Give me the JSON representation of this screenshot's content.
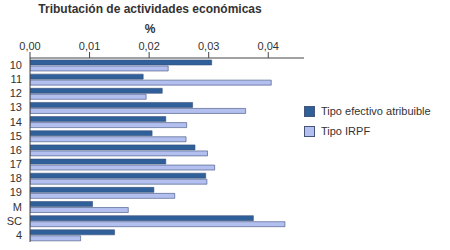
{
  "chart_data": {
    "type": "bar",
    "title": "Tributación de actividades económicas",
    "x_label": "%",
    "orientation": "horizontal",
    "categories": [
      "10",
      "11",
      "12",
      "13",
      "14",
      "15",
      "16",
      "17",
      "18",
      "19",
      "M",
      "SC",
      "4"
    ],
    "series": [
      {
        "name": "Tipo efectivo atribuible",
        "color": "#30609a",
        "values": [
          0.0305,
          0.019,
          0.0222,
          0.0273,
          0.0228,
          0.0205,
          0.0277,
          0.0228,
          0.0295,
          0.0208,
          0.0105,
          0.0375,
          0.0142
        ]
      },
      {
        "name": "Tipo IRPF",
        "color": "#b3bfef",
        "values": [
          0.0232,
          0.0405,
          0.0195,
          0.0362,
          0.0263,
          0.0262,
          0.0298,
          0.031,
          0.0297,
          0.0243,
          0.0165,
          0.0428,
          0.0085
        ]
      }
    ],
    "xlim": [
      0,
      0.046
    ],
    "xticks": [
      {
        "value": 0,
        "label": "0,00"
      },
      {
        "value": 0.01,
        "label": "0,01"
      },
      {
        "value": 0.02,
        "label": "0,02"
      },
      {
        "value": 0.03,
        "label": "0,03"
      },
      {
        "value": 0.04,
        "label": "0,04"
      }
    ],
    "grid": false,
    "legend": "right"
  }
}
